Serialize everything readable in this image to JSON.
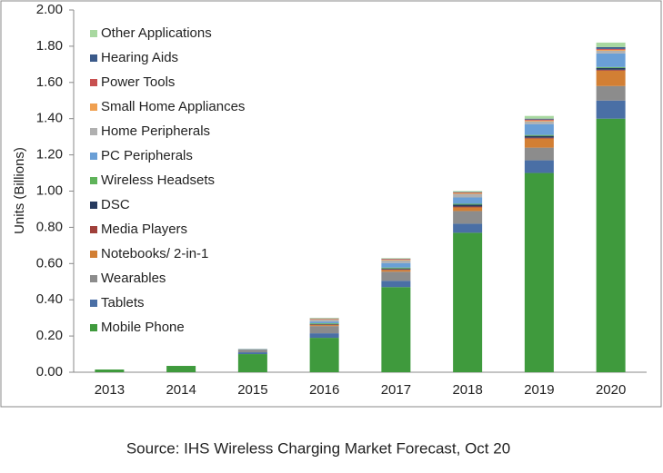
{
  "chart_data": {
    "type": "stacked_bar",
    "y_label": "Units (Billions)",
    "source": "Source: IHS Wireless Charging Market Forecast, Oct 20",
    "categories": [
      "2013",
      "2014",
      "2015",
      "2016",
      "2017",
      "2018",
      "2019",
      "2020"
    ],
    "ylim": [
      0,
      2
    ],
    "yticks": [
      {
        "value": 0,
        "label": "0.00"
      },
      {
        "value": 0.2,
        "label": "0.20"
      },
      {
        "value": 0.4,
        "label": "0.40"
      },
      {
        "value": 0.6,
        "label": "0.60"
      },
      {
        "value": 0.8,
        "label": "0.80"
      },
      {
        "value": 1,
        "label": "1.00"
      },
      {
        "value": 1.2,
        "label": "1.20"
      },
      {
        "value": 1.4,
        "label": "1.40"
      },
      {
        "value": 1.6,
        "label": "1.60"
      },
      {
        "value": 1.8,
        "label": "1.80"
      },
      {
        "value": 2,
        "label": "2.00"
      }
    ],
    "grid": false,
    "legend": "upper left",
    "series": [
      {
        "name": "Mobile Phone",
        "color": "#3f9a3d",
        "values": [
          0.015,
          0.035,
          0.1,
          0.19,
          0.47,
          0.77,
          1.1,
          1.4
        ]
      },
      {
        "name": "Tablets",
        "color": "#4a6fa5",
        "values": [
          0,
          0,
          0.01,
          0.025,
          0.035,
          0.05,
          0.07,
          0.1
        ]
      },
      {
        "name": "Wearables",
        "color": "#8c8c8c",
        "values": [
          0,
          0,
          0.015,
          0.04,
          0.05,
          0.07,
          0.07,
          0.08
        ]
      },
      {
        "name": "Notebooks/ 2-in-1",
        "color": "#d27f34",
        "values": [
          0,
          0,
          0,
          0.005,
          0.01,
          0.02,
          0.05,
          0.085
        ]
      },
      {
        "name": "Media Players",
        "color": "#a0403a",
        "values": [
          0,
          0,
          0,
          0.003,
          0.003,
          0.005,
          0.005,
          0.005
        ]
      },
      {
        "name": "DSC",
        "color": "#263a5e",
        "values": [
          0,
          0,
          0,
          0.002,
          0.005,
          0.01,
          0.01,
          0.01
        ]
      },
      {
        "name": "Wireless Headsets",
        "color": "#5fb35a",
        "values": [
          0,
          0,
          0,
          0.005,
          0.005,
          0.005,
          0.005,
          0.005
        ]
      },
      {
        "name": "PC Peripherals",
        "color": "#6a9fd6",
        "values": [
          0,
          0,
          0.002,
          0.01,
          0.025,
          0.035,
          0.06,
          0.075
        ]
      },
      {
        "name": "Home Peripherals",
        "color": "#b0b0b0",
        "values": [
          0,
          0,
          0.002,
          0.01,
          0.015,
          0.02,
          0.015,
          0.015
        ]
      },
      {
        "name": "Small Home Appliances",
        "color": "#f0a050",
        "values": [
          0,
          0,
          0,
          0.003,
          0.004,
          0.005,
          0.005,
          0.005
        ]
      },
      {
        "name": "Power Tools",
        "color": "#c85050",
        "values": [
          0,
          0,
          0,
          0.002,
          0.003,
          0.003,
          0.005,
          0.005
        ]
      },
      {
        "name": "Hearing Aids",
        "color": "#3b5a8a",
        "values": [
          0,
          0,
          0,
          0.002,
          0.002,
          0.002,
          0.005,
          0.01
        ]
      },
      {
        "name": "Other Applications",
        "color": "#a8d8a0",
        "values": [
          0,
          0,
          0.001,
          0.003,
          0.003,
          0.005,
          0.015,
          0.025
        ]
      }
    ]
  }
}
